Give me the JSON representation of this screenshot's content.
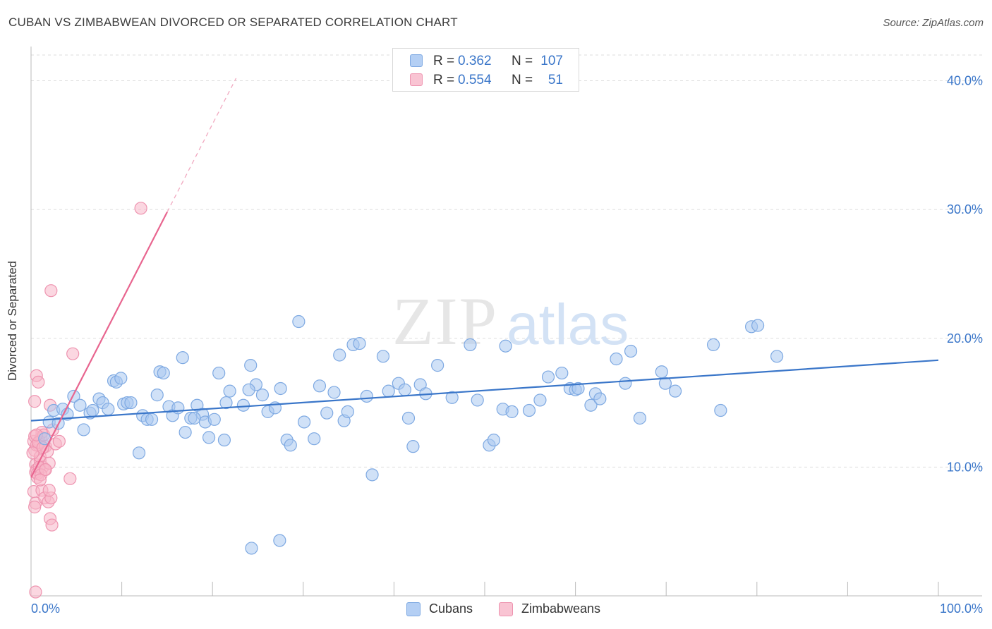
{
  "title": "CUBAN VS ZIMBABWEAN DIVORCED OR SEPARATED CORRELATION CHART",
  "source": "Source: ZipAtlas.com",
  "watermark": {
    "zip": "ZIP",
    "atlas": "atlas"
  },
  "colors": {
    "blue": "#3a76c9",
    "blue_fill": "#a9c8f1",
    "blue_stroke": "#7ea9e2",
    "pink": "#e8658f",
    "pink_fill": "#f7b6c9",
    "pink_stroke": "#ee94b0",
    "grid": "#dddddd",
    "axis": "#bbbbbb",
    "tick_text": "#3a76c9"
  },
  "legend_top": [
    {
      "r_label": "R =",
      "r_value": "0.362",
      "n_label": "N =",
      "n_value": "107"
    },
    {
      "r_label": "R =",
      "r_value": "0.554",
      "n_label": "N =",
      "n_value": "51"
    }
  ],
  "legend_bottom": [
    "Cubans",
    "Zimbabweans"
  ],
  "chart_data": {
    "type": "scatter",
    "title": "CUBAN VS ZIMBABWEAN DIVORCED OR SEPARATED CORRELATION CHART",
    "xlabel": "",
    "ylabel": "Divorced or Separated",
    "xlim": [
      0,
      100
    ],
    "ylim": [
      0,
      42
    ],
    "x_tick_labels": [
      "0.0%",
      "100.0%"
    ],
    "y_ticks": [
      10,
      20,
      30,
      40
    ],
    "y_tick_labels": [
      "10.0%",
      "20.0%",
      "30.0%",
      "40.0%"
    ],
    "grid": true,
    "legend_position": "top-center",
    "series": [
      {
        "name": "Cubans",
        "color": "#3a76c9",
        "trend": {
          "x": [
            0,
            100
          ],
          "y": [
            13.6,
            18.3
          ]
        },
        "points": [
          [
            1.5,
            12.2
          ],
          [
            2.0,
            13.5
          ],
          [
            2.5,
            14.4
          ],
          [
            3.0,
            13.4
          ],
          [
            3.5,
            14.5
          ],
          [
            4.0,
            14.1
          ],
          [
            4.7,
            15.5
          ],
          [
            5.4,
            14.8
          ],
          [
            5.8,
            12.9
          ],
          [
            6.5,
            14.2
          ],
          [
            6.8,
            14.4
          ],
          [
            7.5,
            15.3
          ],
          [
            7.9,
            15.0
          ],
          [
            8.5,
            14.5
          ],
          [
            9.1,
            16.7
          ],
          [
            9.4,
            16.6
          ],
          [
            9.9,
            16.9
          ],
          [
            10.2,
            14.9
          ],
          [
            10.6,
            15.0
          ],
          [
            11.0,
            15.0
          ],
          [
            11.9,
            11.1
          ],
          [
            12.3,
            14.0
          ],
          [
            12.8,
            13.7
          ],
          [
            13.3,
            13.7
          ],
          [
            13.9,
            15.6
          ],
          [
            14.2,
            17.4
          ],
          [
            14.6,
            17.3
          ],
          [
            15.2,
            14.7
          ],
          [
            15.6,
            14.0
          ],
          [
            16.2,
            14.6
          ],
          [
            16.7,
            18.5
          ],
          [
            17.0,
            12.7
          ],
          [
            17.6,
            13.8
          ],
          [
            18.3,
            14.8
          ],
          [
            18.9,
            14.1
          ],
          [
            19.2,
            13.5
          ],
          [
            19.6,
            12.3
          ],
          [
            20.2,
            13.7
          ],
          [
            20.7,
            17.3
          ],
          [
            21.3,
            12.1
          ],
          [
            21.9,
            15.9
          ],
          [
            21.5,
            15.0
          ],
          [
            23.4,
            14.8
          ],
          [
            24.2,
            17.9
          ],
          [
            24.8,
            16.4
          ],
          [
            25.5,
            15.6
          ],
          [
            26.1,
            14.3
          ],
          [
            26.9,
            14.6
          ],
          [
            27.5,
            16.1
          ],
          [
            28.2,
            12.1
          ],
          [
            28.6,
            11.7
          ],
          [
            29.5,
            21.3
          ],
          [
            30.1,
            13.5
          ],
          [
            31.2,
            12.2
          ],
          [
            31.8,
            16.3
          ],
          [
            32.6,
            14.2
          ],
          [
            33.4,
            15.8
          ],
          [
            34.0,
            18.7
          ],
          [
            34.5,
            13.6
          ],
          [
            34.9,
            14.3
          ],
          [
            35.5,
            19.5
          ],
          [
            36.2,
            19.6
          ],
          [
            37.0,
            15.5
          ],
          [
            37.6,
            9.4
          ],
          [
            24.3,
            3.7
          ],
          [
            27.4,
            4.3
          ],
          [
            38.8,
            18.6
          ],
          [
            39.4,
            15.9
          ],
          [
            40.5,
            16.5
          ],
          [
            41.2,
            16.0
          ],
          [
            41.6,
            13.8
          ],
          [
            42.1,
            11.6
          ],
          [
            42.9,
            16.4
          ],
          [
            43.5,
            15.7
          ],
          [
            44.8,
            17.9
          ],
          [
            46.4,
            15.4
          ],
          [
            48.4,
            19.5
          ],
          [
            49.2,
            15.2
          ],
          [
            50.5,
            11.7
          ],
          [
            51.0,
            12.1
          ],
          [
            52.0,
            14.5
          ],
          [
            52.3,
            19.4
          ],
          [
            53.0,
            14.3
          ],
          [
            54.9,
            14.4
          ],
          [
            56.1,
            15.2
          ],
          [
            58.5,
            17.3
          ],
          [
            59.4,
            16.1
          ],
          [
            60.0,
            16.0
          ],
          [
            60.3,
            16.1
          ],
          [
            61.7,
            14.8
          ],
          [
            62.2,
            15.7
          ],
          [
            62.7,
            15.3
          ],
          [
            64.5,
            18.4
          ],
          [
            65.5,
            16.5
          ],
          [
            66.1,
            19.0
          ],
          [
            67.1,
            13.8
          ],
          [
            69.5,
            17.4
          ],
          [
            69.9,
            16.5
          ],
          [
            75.2,
            19.5
          ],
          [
            79.4,
            20.9
          ],
          [
            80.1,
            21.0
          ],
          [
            82.2,
            18.6
          ],
          [
            76.0,
            14.4
          ],
          [
            71.0,
            15.9
          ],
          [
            24.0,
            16.0
          ],
          [
            18.0,
            13.8
          ],
          [
            57.0,
            17.0
          ]
        ]
      },
      {
        "name": "Zimbabweans",
        "color": "#e8658f",
        "trend": {
          "x": [
            0,
            15
          ],
          "y": [
            9.2,
            29.8
          ]
        },
        "trend_dashed": {
          "x": [
            15,
            22.6
          ],
          "y": [
            29.8,
            40.2
          ]
        },
        "points": [
          [
            0.3,
            12.0
          ],
          [
            0.4,
            11.3
          ],
          [
            0.5,
            10.2
          ],
          [
            0.6,
            9.8
          ],
          [
            0.7,
            9.2
          ],
          [
            0.3,
            8.1
          ],
          [
            0.5,
            7.2
          ],
          [
            0.8,
            11.7
          ],
          [
            1.0,
            10.5
          ],
          [
            1.1,
            12.3
          ],
          [
            0.4,
            15.1
          ],
          [
            0.6,
            17.1
          ],
          [
            0.8,
            16.6
          ],
          [
            1.2,
            12.7
          ],
          [
            0.9,
            12.0
          ],
          [
            0.4,
            12.4
          ],
          [
            0.6,
            11.7
          ],
          [
            0.8,
            11.9
          ],
          [
            1.0,
            10.8
          ],
          [
            1.3,
            10.0
          ],
          [
            1.5,
            9.8
          ],
          [
            0.5,
            9.6
          ],
          [
            0.7,
            9.5
          ],
          [
            0.9,
            10.0
          ],
          [
            1.1,
            9.4
          ],
          [
            1.4,
            12.5
          ],
          [
            1.6,
            11.6
          ],
          [
            1.8,
            11.2
          ],
          [
            2.0,
            10.3
          ],
          [
            2.4,
            12.9
          ],
          [
            2.1,
            14.8
          ],
          [
            2.7,
            11.8
          ],
          [
            3.1,
            12.0
          ],
          [
            2.2,
            23.7
          ],
          [
            4.6,
            18.8
          ],
          [
            12.1,
            30.1
          ],
          [
            0.5,
            0.3
          ],
          [
            1.2,
            8.2
          ],
          [
            1.5,
            7.6
          ],
          [
            1.9,
            7.3
          ],
          [
            2.2,
            7.6
          ],
          [
            2.1,
            6.0
          ],
          [
            2.3,
            5.5
          ],
          [
            2.0,
            8.2
          ],
          [
            4.3,
            9.1
          ],
          [
            1.6,
            9.8
          ],
          [
            0.2,
            11.1
          ],
          [
            0.6,
            12.5
          ],
          [
            1.3,
            11.5
          ],
          [
            1.0,
            9.0
          ],
          [
            0.4,
            6.9
          ]
        ]
      }
    ]
  }
}
